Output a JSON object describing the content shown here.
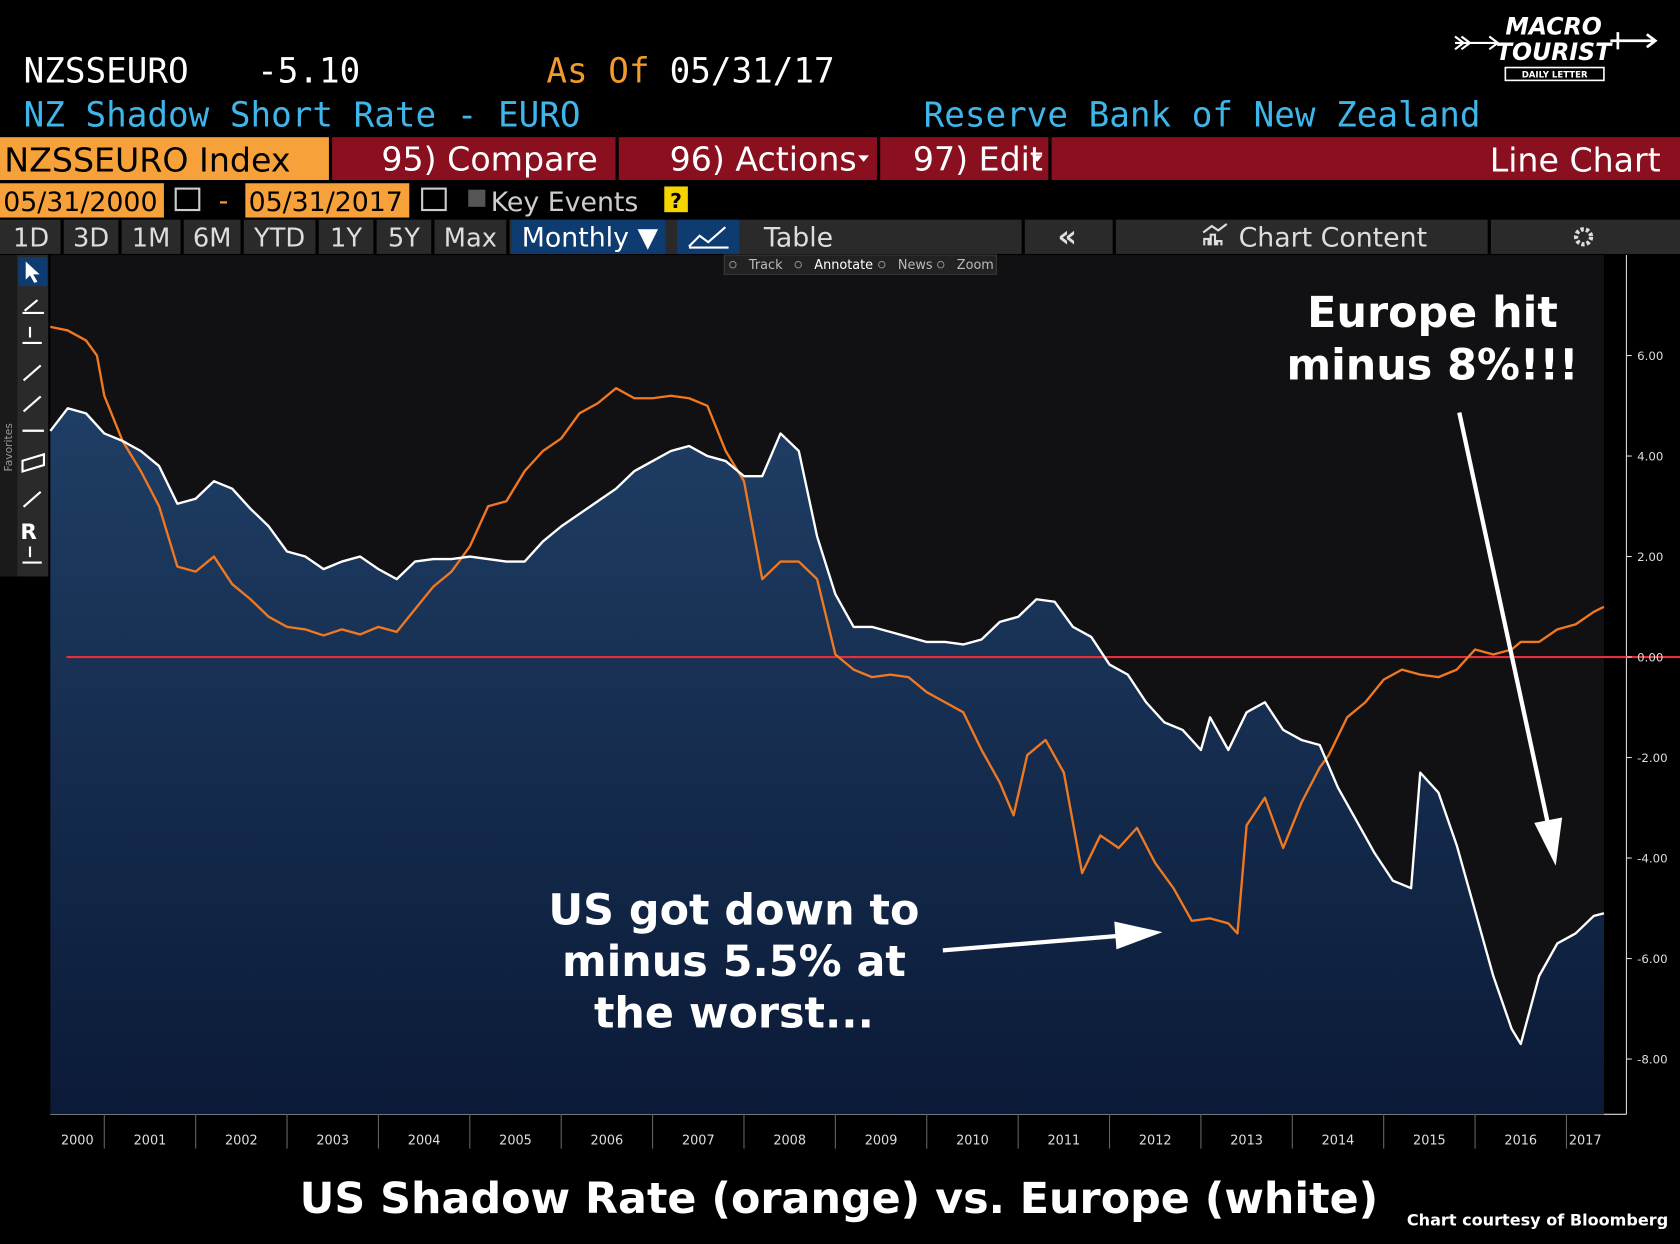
{
  "header": {
    "ticker": "NZSSEURO",
    "last": "-5.10",
    "as_of_label": "As Of",
    "as_of_date": "05/31/17",
    "name": "NZ Shadow Short Rate - EURO",
    "source": "Reserve Bank of New Zealand"
  },
  "logo": {
    "line1": "MACRO",
    "line2": "TOURIST",
    "tagline": "DAILY LETTER"
  },
  "toolbar": {
    "security": "NZSSEURO Index",
    "menus": [
      "95) Compare",
      "96) Actions",
      "97) Edit"
    ],
    "view": "Line Chart"
  },
  "range": {
    "start": "05/31/2000",
    "separator": "-",
    "end": "05/31/2017",
    "events": "Key Events",
    "help": "?"
  },
  "periods": [
    "1D",
    "3D",
    "1M",
    "6M",
    "YTD",
    "1Y",
    "5Y",
    "Max"
  ],
  "frequency": "Monthly ▼",
  "table": "Table",
  "back": "«",
  "content": "Chart Content",
  "modes": [
    "Track",
    "Annotate",
    "News",
    "Zoom"
  ],
  "sidebar": {
    "label": "Favorites",
    "icon_text": "R"
  },
  "chart_data": {
    "type": "line",
    "title": "US Shadow Rate (orange) vs. Europe (white)",
    "credit": "Chart courtesy of Bloomberg",
    "annotations": [
      {
        "lines": [
          "Europe hit",
          "minus 8%!!!"
        ]
      },
      {
        "lines": [
          "US got down to",
          "minus 5.5% at",
          "the worst..."
        ]
      }
    ],
    "xlim": [
      2000.41,
      2017.41
    ],
    "xticks": [
      2000,
      2001,
      2002,
      2003,
      2004,
      2005,
      2006,
      2007,
      2008,
      2009,
      2010,
      2011,
      2012,
      2013,
      2014,
      2015,
      2016,
      2017
    ],
    "ylim": [
      -9.1,
      8.0
    ],
    "yticks": [
      {
        "value": 6,
        "label": "6.00"
      },
      {
        "value": 4,
        "label": "4.00"
      },
      {
        "value": 2,
        "label": "2.00"
      },
      {
        "value": 0,
        "label": "0.00"
      },
      {
        "value": -2,
        "label": "-2.00"
      },
      {
        "value": -4,
        "label": "-4.00"
      },
      {
        "value": -6,
        "label": "-6.00"
      },
      {
        "value": -8,
        "label": "-8.00"
      }
    ],
    "zero_line_color": "#e3303a",
    "series": [
      {
        "color": "#f07820",
        "x": [
          2000.41,
          2000.6,
          2000.8,
          2000.92,
          2001.0,
          2001.2,
          2001.4,
          2001.6,
          2001.8,
          2002.0,
          2002.2,
          2002.4,
          2002.6,
          2002.8,
          2003.0,
          2003.2,
          2003.4,
          2003.6,
          2003.8,
          2004.0,
          2004.2,
          2004.4,
          2004.6,
          2004.8,
          2005.0,
          2005.2,
          2005.4,
          2005.6,
          2005.8,
          2006.0,
          2006.2,
          2006.4,
          2006.6,
          2006.8,
          2007.0,
          2007.2,
          2007.4,
          2007.6,
          2007.8,
          2008.0,
          2008.2,
          2008.4,
          2008.6,
          2008.8,
          2009.0,
          2009.2,
          2009.4,
          2009.6,
          2009.8,
          2010.0,
          2010.2,
          2010.4,
          2010.6,
          2010.8,
          2010.95,
          2011.1,
          2011.3,
          2011.5,
          2011.7,
          2011.9,
          2012.1,
          2012.3,
          2012.5,
          2012.7,
          2012.9,
          2013.1,
          2013.3,
          2013.4,
          2013.5,
          2013.7,
          2013.9,
          2014.1,
          2014.3,
          2014.4,
          2014.6,
          2014.8,
          2015.0,
          2015.2,
          2015.4,
          2015.6,
          2015.8,
          2016.0,
          2016.2,
          2016.4,
          2016.5,
          2016.7,
          2016.9,
          2017.1,
          2017.3,
          2017.41
        ],
        "values": [
          6.57,
          6.5,
          6.3,
          6.0,
          5.2,
          4.3,
          3.7,
          3.0,
          1.8,
          1.7,
          2.0,
          1.45,
          1.15,
          0.8,
          0.6,
          0.55,
          0.43,
          0.55,
          0.45,
          0.6,
          0.5,
          0.95,
          1.4,
          1.7,
          2.2,
          3.0,
          3.1,
          3.7,
          4.1,
          4.35,
          4.85,
          5.05,
          5.35,
          5.15,
          5.15,
          5.2,
          5.15,
          5.0,
          4.1,
          3.5,
          1.55,
          1.9,
          1.9,
          1.55,
          0.05,
          -0.25,
          -0.4,
          -0.35,
          -0.4,
          -0.7,
          -0.9,
          -1.1,
          -1.85,
          -2.5,
          -3.15,
          -1.95,
          -1.65,
          -2.3,
          -4.3,
          -3.55,
          -3.8,
          -3.4,
          -4.1,
          -4.6,
          -5.25,
          -5.2,
          -5.3,
          -5.5,
          -3.35,
          -2.8,
          -3.8,
          -2.9,
          -2.2,
          -1.95,
          -1.2,
          -0.9,
          -0.45,
          -0.25,
          -0.35,
          -0.4,
          -0.25,
          0.15,
          0.05,
          0.15,
          0.3,
          0.3,
          0.55,
          0.65,
          0.9,
          1.0
        ]
      },
      {
        "color": "#ffffff",
        "area_gradient": [
          "#1f3e65",
          "#0b1a37"
        ],
        "x": [
          2000.41,
          2000.6,
          2000.8,
          2001.0,
          2001.2,
          2001.4,
          2001.6,
          2001.8,
          2002.0,
          2002.2,
          2002.4,
          2002.6,
          2002.8,
          2003.0,
          2003.2,
          2003.4,
          2003.6,
          2003.8,
          2004.0,
          2004.2,
          2004.4,
          2004.6,
          2004.8,
          2005.0,
          2005.2,
          2005.4,
          2005.6,
          2005.8,
          2006.0,
          2006.2,
          2006.4,
          2006.6,
          2006.8,
          2007.0,
          2007.2,
          2007.4,
          2007.6,
          2007.8,
          2008.0,
          2008.2,
          2008.4,
          2008.6,
          2008.8,
          2009.0,
          2009.2,
          2009.4,
          2009.6,
          2009.8,
          2010.0,
          2010.2,
          2010.4,
          2010.6,
          2010.8,
          2011.0,
          2011.2,
          2011.4,
          2011.6,
          2011.8,
          2012.0,
          2012.2,
          2012.4,
          2012.6,
          2012.8,
          2013.0,
          2013.1,
          2013.3,
          2013.5,
          2013.7,
          2013.9,
          2014.1,
          2014.3,
          2014.5,
          2014.7,
          2014.9,
          2015.1,
          2015.3,
          2015.4,
          2015.6,
          2015.8,
          2016.0,
          2016.2,
          2016.4,
          2016.5,
          2016.7,
          2016.9,
          2017.1,
          2017.3,
          2017.41
        ],
        "values": [
          4.5,
          4.95,
          4.85,
          4.45,
          4.3,
          4.1,
          3.8,
          3.05,
          3.15,
          3.5,
          3.35,
          2.95,
          2.6,
          2.1,
          2.0,
          1.75,
          1.9,
          2.0,
          1.75,
          1.55,
          1.9,
          1.95,
          1.95,
          2.0,
          1.95,
          1.9,
          1.9,
          2.3,
          2.6,
          2.85,
          3.1,
          3.35,
          3.7,
          3.9,
          4.1,
          4.2,
          4.0,
          3.9,
          3.6,
          3.6,
          4.45,
          4.1,
          2.4,
          1.25,
          0.6,
          0.6,
          0.5,
          0.4,
          0.3,
          0.3,
          0.25,
          0.35,
          0.7,
          0.8,
          1.15,
          1.1,
          0.6,
          0.4,
          -0.15,
          -0.35,
          -0.9,
          -1.3,
          -1.45,
          -1.85,
          -1.2,
          -1.85,
          -1.1,
          -0.9,
          -1.45,
          -1.65,
          -1.75,
          -2.6,
          -3.25,
          -3.9,
          -4.45,
          -4.6,
          -2.3,
          -2.7,
          -3.75,
          -5.05,
          -6.35,
          -7.4,
          -7.7,
          -6.35,
          -5.7,
          -5.5,
          -5.15,
          -5.1
        ]
      }
    ]
  }
}
